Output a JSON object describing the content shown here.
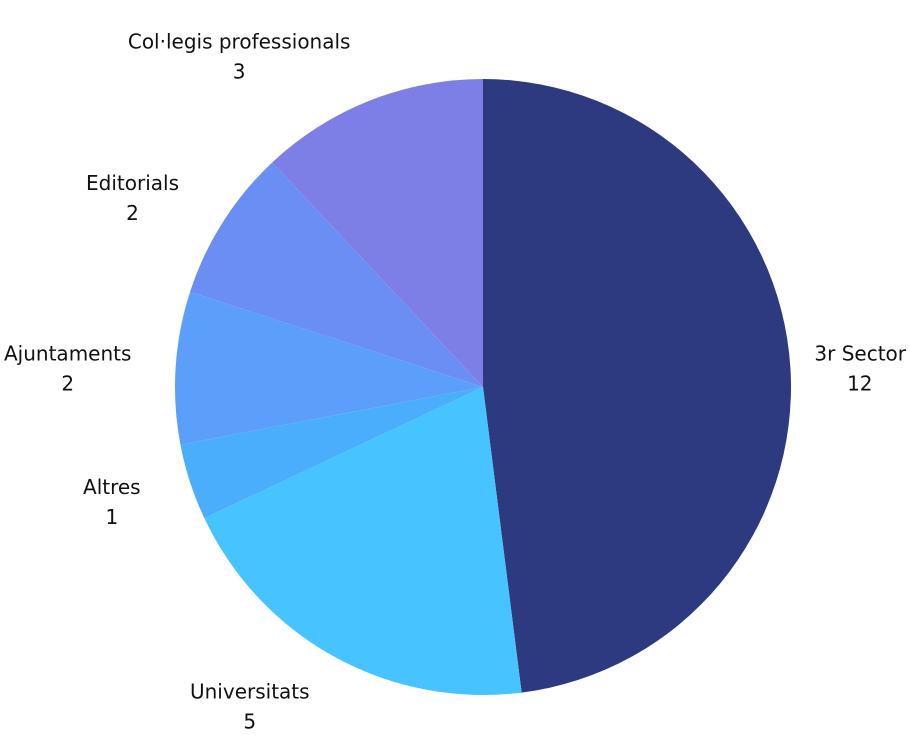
{
  "chart_data": {
    "type": "pie",
    "title": "",
    "slices": [
      {
        "label": "3r Sector",
        "value": 12,
        "color": "#2e3a80"
      },
      {
        "label": "Universitats",
        "value": 5,
        "color": "#47c3ff"
      },
      {
        "label": "Altres",
        "value": 1,
        "color": "#4aaefc"
      },
      {
        "label": "Ajuntaments",
        "value": 2,
        "color": "#5b9ffa"
      },
      {
        "label": "Editorials",
        "value": 2,
        "color": "#6b8ef5"
      },
      {
        "label": "Col·legis professionals",
        "value": 3,
        "color": "#7d7fe6"
      }
    ],
    "start_angle": "top",
    "direction": "clockwise",
    "legend": "none"
  }
}
